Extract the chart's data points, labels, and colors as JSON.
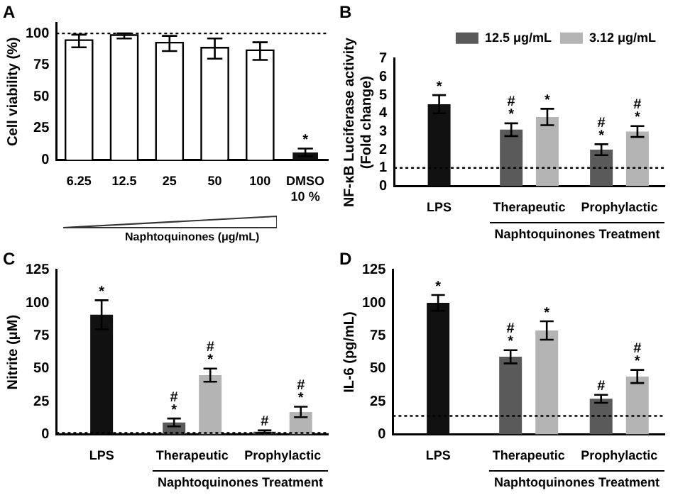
{
  "chart_data": [
    {
      "type": "bar",
      "title": "A",
      "xlabel": "Naphtoquinones (μg/mL)",
      "ylabel": "Cell viability (%)",
      "categories": [
        "6.25",
        "12.5",
        "25",
        "50",
        "100",
        "DMSO\n10 %"
      ],
      "values": [
        94,
        98,
        92,
        88,
        86,
        6
      ],
      "errors": [
        5,
        2,
        6,
        8,
        7,
        3
      ],
      "value_labels": [
        null,
        null,
        null,
        null,
        null,
        "*"
      ],
      "colors": [
        "#ffffff",
        "#ffffff",
        "#ffffff",
        "#ffffff",
        "#ffffff",
        "#111111"
      ],
      "ylim": [
        0,
        108
      ],
      "yticks": [
        0,
        25,
        50,
        75,
        100
      ],
      "ref_lines": [
        {
          "axis": "y",
          "value": 100,
          "line_style": "dotted"
        }
      ],
      "grid": false,
      "legend": false
    },
    {
      "type": "bar",
      "title": "B",
      "xlabel": "Naphtoquinones Treatment",
      "ylabel": "NF-κB Luciferase activity\n(Fold change)",
      "categories": [
        "LPS",
        "Therapeutic",
        "Prophylactic"
      ],
      "series": [
        {
          "color": "#111111",
          "values": [
            4.5,
            null,
            null
          ],
          "errors": [
            0.5,
            null,
            null
          ],
          "value_labels": [
            "*",
            null,
            null
          ]
        },
        {
          "name": "12.5 μg/mL",
          "color": "#5a5a5a",
          "values": [
            null,
            3.1,
            2.0
          ],
          "errors": [
            null,
            0.35,
            0.3
          ],
          "value_labels": [
            null,
            "#\n*",
            "#\n*"
          ]
        },
        {
          "name": "3.12 μg/mL",
          "color": "#b4b4b4",
          "values": [
            null,
            3.8,
            3.0
          ],
          "errors": [
            null,
            0.45,
            0.3
          ],
          "value_labels": [
            null,
            "*",
            "#\n*"
          ]
        }
      ],
      "ylim": [
        0,
        7
      ],
      "yticks": [
        0,
        1,
        2,
        3,
        4,
        5,
        6,
        7
      ],
      "ref_lines": [
        {
          "axis": "y",
          "value": 1,
          "line_style": "dotted"
        }
      ],
      "grid": false,
      "legend": "top right"
    },
    {
      "type": "bar",
      "title": "C",
      "xlabel": "Naphtoquinones Treatment",
      "ylabel": "Nitrite (μM)",
      "categories": [
        "LPS",
        "Therapeutic",
        "Prophylactic"
      ],
      "series": [
        {
          "color": "#111111",
          "values": [
            91,
            null,
            null
          ],
          "errors": [
            11,
            null,
            null
          ],
          "value_labels": [
            "*",
            null,
            null
          ]
        },
        {
          "color": "#5a5a5a",
          "values": [
            null,
            9,
            2
          ],
          "errors": [
            null,
            3,
            1
          ],
          "value_labels": [
            null,
            "#\n*",
            "#"
          ]
        },
        {
          "color": "#b4b4b4",
          "values": [
            null,
            45,
            17
          ],
          "errors": [
            null,
            5,
            4
          ],
          "value_labels": [
            null,
            "#\n*",
            "#\n*"
          ]
        }
      ],
      "ylim": [
        0,
        125
      ],
      "yticks": [
        0,
        25,
        50,
        75,
        100,
        125
      ],
      "ref_lines": [
        {
          "axis": "y",
          "value": 1,
          "line_style": "dotted"
        }
      ],
      "grid": false,
      "legend": false
    },
    {
      "type": "bar",
      "title": "D",
      "xlabel": "Naphtoquinones Treatment",
      "ylabel": "IL-6 (pg/mL)",
      "categories": [
        "LPS",
        "Therapeutic",
        "Prophylactic"
      ],
      "series": [
        {
          "color": "#111111",
          "values": [
            100,
            null,
            null
          ],
          "errors": [
            6,
            null,
            null
          ],
          "value_labels": [
            "*",
            null,
            null
          ]
        },
        {
          "color": "#5a5a5a",
          "values": [
            null,
            59,
            27
          ],
          "errors": [
            null,
            5,
            3
          ],
          "value_labels": [
            null,
            "#\n*",
            "#"
          ]
        },
        {
          "color": "#b4b4b4",
          "values": [
            null,
            79,
            44
          ],
          "errors": [
            null,
            7,
            5
          ],
          "value_labels": [
            null,
            "*",
            "#\n*"
          ]
        }
      ],
      "ylim": [
        0,
        125
      ],
      "yticks": [
        0,
        25,
        50,
        75,
        100,
        125
      ],
      "ref_lines": [
        {
          "axis": "y",
          "value": 14,
          "line_style": "dotted"
        }
      ],
      "grid": false,
      "legend": false
    }
  ]
}
